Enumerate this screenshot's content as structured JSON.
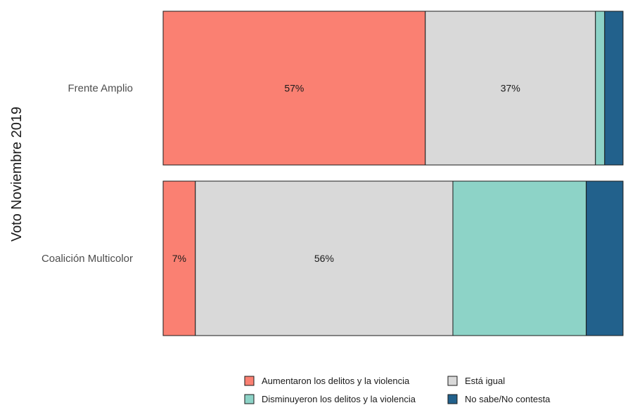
{
  "chart_data": {
    "type": "bar",
    "orientation": "horizontal",
    "stacked": true,
    "ylabel": "Voto Noviembre 2019",
    "xlabel": "",
    "xlim": [
      0,
      100
    ],
    "grid": false,
    "legend_position": "bottom",
    "categories": [
      "Frente Amplio",
      "Coalición Multicolor"
    ],
    "series": [
      {
        "name": "Aumentaron los delitos y la violencia",
        "color": "#fa8072",
        "values": [
          57,
          7
        ],
        "labels": [
          "57%",
          "7%"
        ]
      },
      {
        "name": "Está igual",
        "color": "#d9d9d9",
        "values": [
          37,
          56
        ],
        "labels": [
          "37%",
          "56%"
        ]
      },
      {
        "name": "Disminuyeron los delitos y la violencia",
        "color": "#8dd3c7",
        "values": [
          2,
          29
        ],
        "labels": [
          "2%",
          "29%"
        ]
      },
      {
        "name": "No sabe/No contesta",
        "color": "#22618c",
        "values": [
          4,
          8
        ],
        "labels": [
          "4%",
          "8%"
        ]
      }
    ]
  }
}
